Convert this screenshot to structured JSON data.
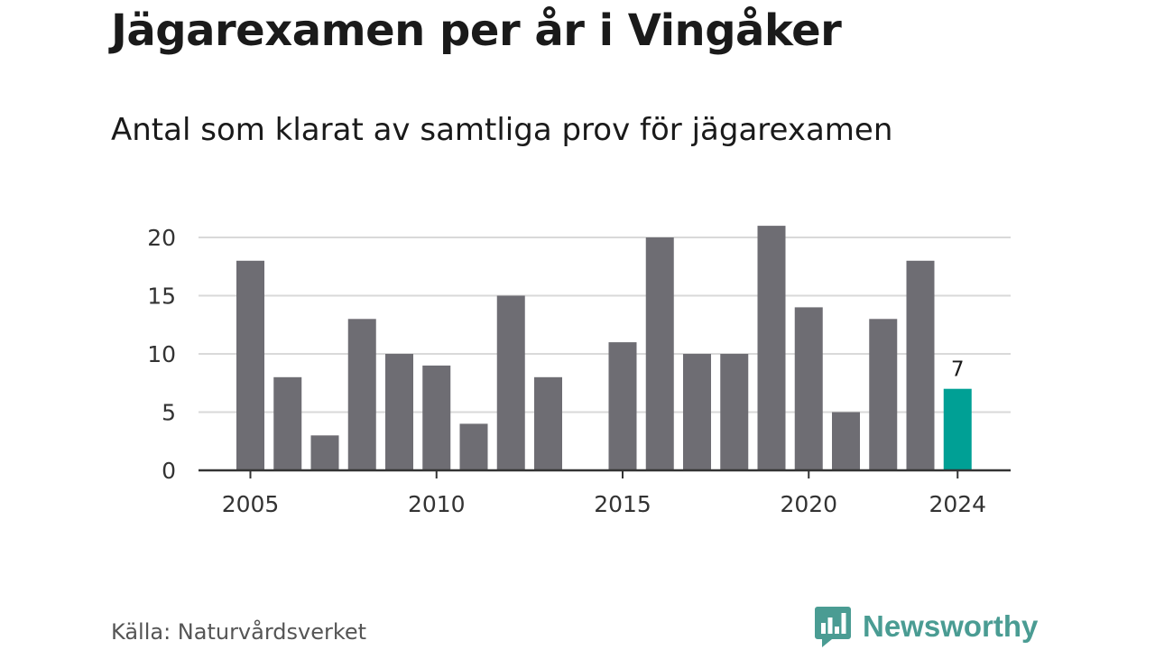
{
  "header": {
    "title": "Jägarexamen per år i Vingåker",
    "subtitle": "Antal som klarat av samtliga prov för jägarexamen"
  },
  "footer": {
    "source": "Källa: Naturvårdsverket",
    "brand": "Newsworthy",
    "brand_icon": "bar-chart-speech-bubble-icon"
  },
  "colors": {
    "bar": "#6e6d73",
    "highlight": "#00a095",
    "grid": "#d9d9d9",
    "axis": "#333333",
    "brand": "#4a9c93"
  },
  "chart_data": {
    "type": "bar",
    "title": "Jägarexamen per år i Vingåker",
    "subtitle": "Antal som klarat av samtliga prov för jägarexamen",
    "xlabel": "",
    "ylabel": "",
    "categories": [
      2005,
      2006,
      2007,
      2008,
      2009,
      2010,
      2011,
      2012,
      2013,
      2014,
      2015,
      2016,
      2017,
      2018,
      2019,
      2020,
      2021,
      2022,
      2023,
      2024
    ],
    "values": [
      18,
      8,
      3,
      13,
      10,
      9,
      4,
      15,
      8,
      0,
      11,
      20,
      10,
      10,
      21,
      14,
      5,
      13,
      18,
      7
    ],
    "highlight": {
      "category": 2024,
      "value": 7,
      "label": "7"
    },
    "x_ticks": [
      "2005",
      "2010",
      "2015",
      "2020",
      "2024"
    ],
    "y_ticks": [
      "0",
      "5",
      "10",
      "15",
      "20"
    ],
    "ylim": [
      0,
      20
    ],
    "grid": true,
    "legend": "none"
  }
}
